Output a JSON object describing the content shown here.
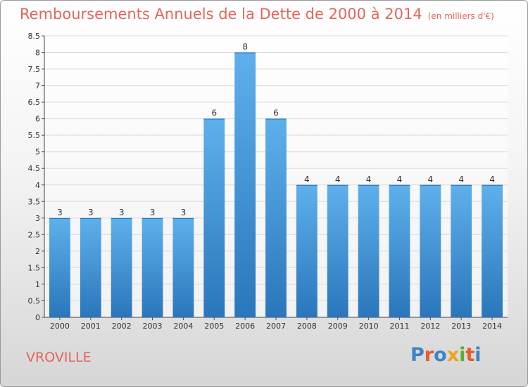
{
  "title": "Remboursements Annuels de la Dette de 2000 à 2014",
  "unit_note": "(en milliers d'€)",
  "commune": "VROVILLE",
  "logo": {
    "text": "Proxiti",
    "letters": [
      "P",
      "r",
      "o",
      "x",
      "i",
      "t",
      "i"
    ]
  },
  "colors": {
    "title": "#e2665a",
    "bar_top": "#5eb0ec",
    "bar_bottom": "#2a76bb",
    "grid": "#dcdcdc"
  },
  "chart_data": {
    "type": "bar",
    "categories": [
      "2000",
      "2001",
      "2002",
      "2003",
      "2004",
      "2005",
      "2006",
      "2007",
      "2008",
      "2009",
      "2010",
      "2011",
      "2012",
      "2013",
      "2014"
    ],
    "values": [
      3,
      3,
      3,
      3,
      3,
      6,
      8,
      6,
      4,
      4,
      4,
      4,
      4,
      4,
      4
    ],
    "ylim": [
      0,
      8.5
    ],
    "yticks": [
      "0",
      "0.5",
      "1",
      "1.5",
      "2",
      "2.5",
      "3",
      "3.5",
      "4",
      "4.5",
      "5",
      "5.5",
      "6",
      "6.5",
      "7",
      "7.5",
      "8",
      "8.5"
    ],
    "grid": true,
    "data_labels": true
  }
}
